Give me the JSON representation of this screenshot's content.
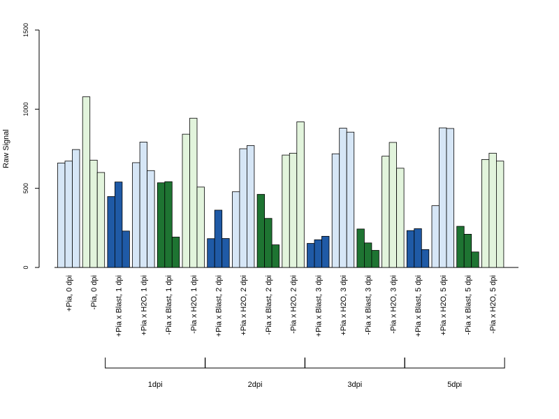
{
  "chart_data": {
    "type": "bar",
    "ylabel": "Raw Signal",
    "ylim": [
      0,
      1500
    ],
    "yticks": [
      0,
      500,
      1000,
      1500
    ],
    "colors": {
      "light_blue": "#d6e6f6",
      "dark_blue": "#1f5aa6",
      "light_green": "#e2f4dc",
      "dark_green": "#1e7432"
    },
    "categories": [
      "+Pia, 0 dpi",
      "-Pia, 0 dpi",
      "+Pia x Blast, 1 dpi",
      "+Pia x H2O, 1 dpi",
      "-Pia x Blast, 1 dpi",
      "-Pia x H2O, 1 dpi",
      "+Pia x Blast, 2 dpi",
      "+Pia x H2O, 2 dpi",
      "-Pia x Blast, 2 dpi",
      "-Pia x H2O, 2 dpi",
      "+Pia x Blast, 3 dpi",
      "+Pia x H2O, 3 dpi",
      "-Pia x Blast, 3 dpi",
      "-Pia x H2O, 3 dpi",
      "+Pia x Blast, 5 dpi",
      "+Pia x H2O, 5 dpi",
      "-Pia x Blast, 5 dpi",
      "-Pia x H2O, 5 dpi"
    ],
    "bar_colors": [
      "light_blue",
      "light_green",
      "dark_blue",
      "light_blue",
      "dark_green",
      "light_green",
      "dark_blue",
      "light_blue",
      "dark_green",
      "light_green",
      "dark_blue",
      "light_blue",
      "dark_green",
      "light_green",
      "dark_blue",
      "light_blue",
      "dark_green",
      "light_green"
    ],
    "values": [
      [
        660,
        672,
        745
      ],
      [
        1078,
        678,
        600
      ],
      [
        448,
        540,
        230
      ],
      [
        662,
        792,
        612
      ],
      [
        535,
        542,
        192
      ],
      [
        842,
        943,
        508
      ],
      [
        182,
        362,
        183
      ],
      [
        478,
        750,
        770
      ],
      [
        462,
        310,
        143
      ],
      [
        710,
        722,
        920
      ],
      [
        152,
        175,
        197
      ],
      [
        718,
        880,
        855
      ],
      [
        243,
        155,
        108
      ],
      [
        703,
        790,
        627
      ],
      [
        233,
        245,
        113
      ],
      [
        390,
        882,
        878
      ],
      [
        260,
        210,
        98
      ],
      [
        682,
        722,
        672
      ]
    ],
    "groups": [
      {
        "label": "1dpi",
        "from": 2,
        "to": 5
      },
      {
        "label": "2dpi",
        "from": 6,
        "to": 9
      },
      {
        "label": "3dpi",
        "from": 10,
        "to": 13
      },
      {
        "label": "5dpi",
        "from": 14,
        "to": 17
      }
    ]
  }
}
